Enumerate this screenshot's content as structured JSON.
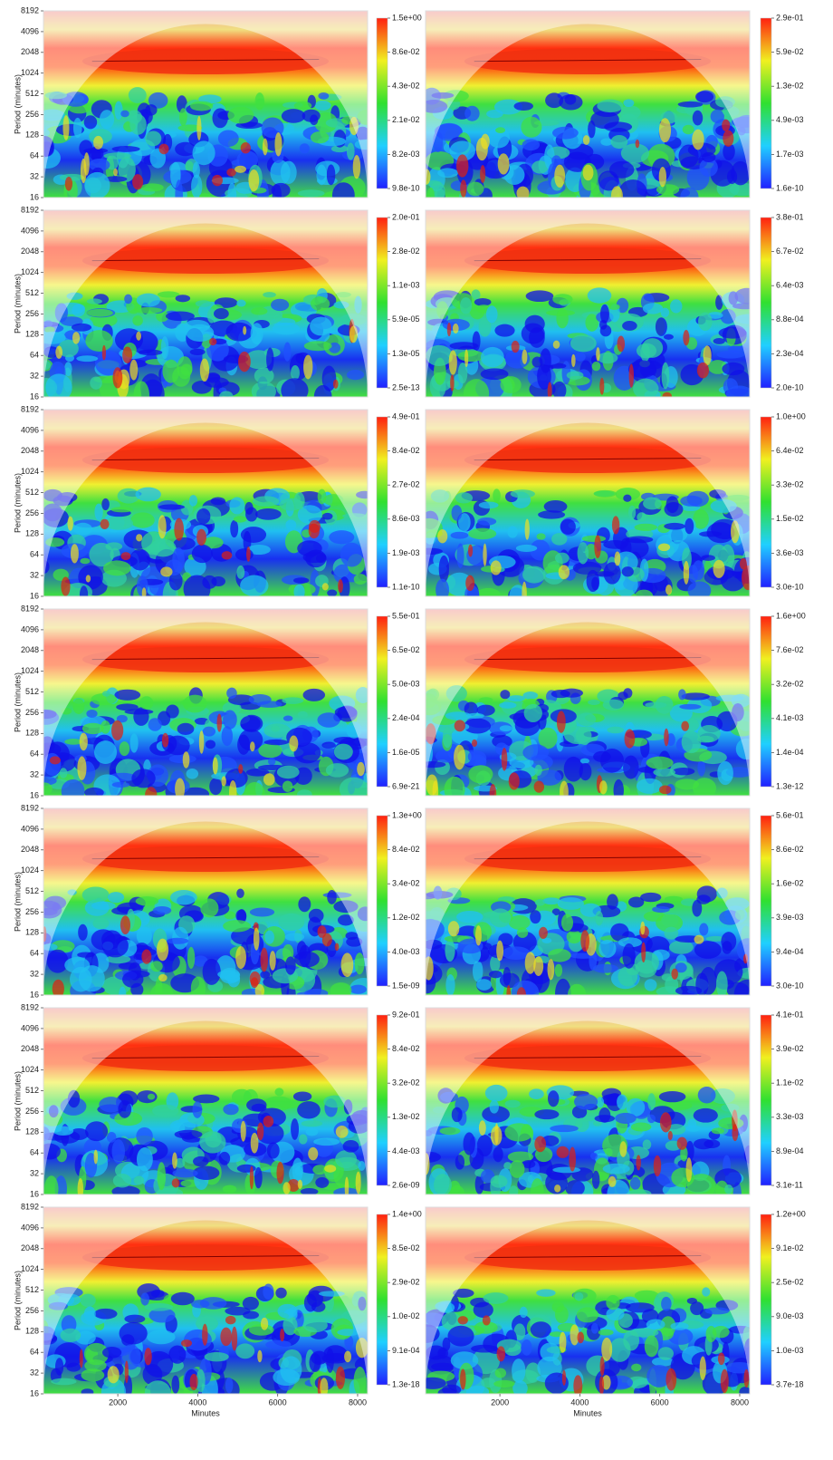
{
  "chart_data": [
    {
      "type": "wavelet",
      "ylabel": "Period (minutes)",
      "ylim": [
        16,
        8192
      ],
      "yticks": [
        16,
        32,
        64,
        128,
        256,
        512,
        1024,
        2048,
        4096,
        8192
      ],
      "y_scale": "log",
      "colorbar_labels": [
        "1.5e+00",
        "8.6e-02",
        "4.3e-02",
        "2.1e-02",
        "8.2e-03",
        "9.8e-10"
      ]
    },
    {
      "type": "wavelet",
      "colorbar_labels": [
        "2.9e-01",
        "5.9e-02",
        "1.3e-02",
        "4.9e-03",
        "1.7e-03",
        "1.6e-10"
      ]
    },
    {
      "type": "wavelet",
      "ylabel": "Period (minutes)",
      "ylim": [
        16,
        8192
      ],
      "yticks": [
        16,
        32,
        64,
        128,
        256,
        512,
        1024,
        2048,
        4096,
        8192
      ],
      "y_scale": "log",
      "colorbar_labels": [
        "2.0e-01",
        "2.8e-02",
        "1.1e-03",
        "5.9e-05",
        "1.3e-05",
        "2.5e-13"
      ]
    },
    {
      "type": "wavelet",
      "colorbar_labels": [
        "3.8e-01",
        "6.7e-02",
        "6.4e-03",
        "8.8e-04",
        "2.3e-04",
        "2.0e-10"
      ]
    },
    {
      "type": "wavelet",
      "ylabel": "Period (minutes)",
      "ylim": [
        16,
        8192
      ],
      "yticks": [
        16,
        32,
        64,
        128,
        256,
        512,
        1024,
        2048,
        4096,
        8192
      ],
      "y_scale": "log",
      "colorbar_labels": [
        "4.9e-01",
        "8.4e-02",
        "2.7e-02",
        "8.6e-03",
        "1.9e-03",
        "1.1e-10"
      ]
    },
    {
      "type": "wavelet",
      "colorbar_labels": [
        "1.0e+00",
        "6.4e-02",
        "3.3e-02",
        "1.5e-02",
        "3.6e-03",
        "3.0e-10"
      ]
    },
    {
      "type": "wavelet",
      "ylabel": "Period (minutes)",
      "ylim": [
        16,
        8192
      ],
      "yticks": [
        16,
        32,
        64,
        128,
        256,
        512,
        1024,
        2048,
        4096,
        8192
      ],
      "y_scale": "log",
      "colorbar_labels": [
        "5.5e-01",
        "6.5e-02",
        "5.0e-03",
        "2.4e-04",
        "1.6e-05",
        "6.9e-21"
      ]
    },
    {
      "type": "wavelet",
      "colorbar_labels": [
        "1.6e+00",
        "7.6e-02",
        "3.2e-02",
        "4.1e-03",
        "1.4e-04",
        "1.3e-12"
      ]
    },
    {
      "type": "wavelet",
      "ylabel": "Period (minutes)",
      "ylim": [
        16,
        8192
      ],
      "yticks": [
        16,
        32,
        64,
        128,
        256,
        512,
        1024,
        2048,
        4096,
        8192
      ],
      "y_scale": "log",
      "colorbar_labels": [
        "1.3e+00",
        "8.4e-02",
        "3.4e-02",
        "1.2e-02",
        "4.0e-03",
        "1.5e-09"
      ]
    },
    {
      "type": "wavelet",
      "colorbar_labels": [
        "5.6e-01",
        "8.6e-02",
        "1.6e-02",
        "3.9e-03",
        "9.4e-04",
        "3.0e-10"
      ]
    },
    {
      "type": "wavelet",
      "ylabel": "Period (minutes)",
      "ylim": [
        16,
        8192
      ],
      "yticks": [
        16,
        32,
        64,
        128,
        256,
        512,
        1024,
        2048,
        4096,
        8192
      ],
      "y_scale": "log",
      "colorbar_labels": [
        "9.2e-01",
        "8.4e-02",
        "3.2e-02",
        "1.3e-02",
        "4.4e-03",
        "2.6e-09"
      ]
    },
    {
      "type": "wavelet",
      "colorbar_labels": [
        "4.1e-01",
        "3.9e-02",
        "1.1e-02",
        "3.3e-03",
        "8.9e-04",
        "3.1e-11"
      ]
    },
    {
      "type": "wavelet",
      "ylabel": "Period (minutes)",
      "ylim": [
        16,
        8192
      ],
      "yticks": [
        16,
        32,
        64,
        128,
        256,
        512,
        1024,
        2048,
        4096,
        8192
      ],
      "y_scale": "log",
      "xlabel": "Minutes",
      "xlim": [
        140,
        8250
      ],
      "xticks": [
        2000,
        4000,
        6000,
        8000
      ],
      "colorbar_labels": [
        "1.4e+00",
        "8.5e-02",
        "2.9e-02",
        "1.0e-02",
        "9.1e-04",
        "1.3e-18"
      ]
    },
    {
      "type": "wavelet",
      "xlabel": "Minutes",
      "xlim": [
        140,
        8250
      ],
      "xticks": [
        2000,
        4000,
        6000,
        8000
      ],
      "colorbar_labels": [
        "1.2e+00",
        "9.1e-02",
        "2.5e-02",
        "9.0e-03",
        "1.0e-03",
        "3.7e-18"
      ]
    }
  ]
}
